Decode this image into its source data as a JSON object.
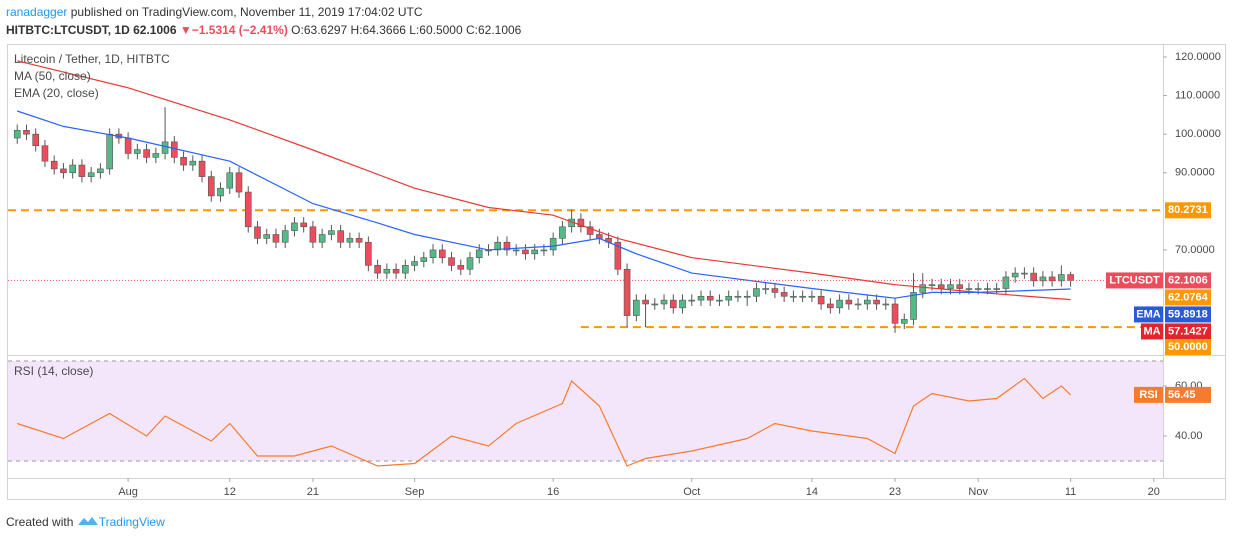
{
  "header": {
    "author": "ranadagger",
    "published": "published on TradingView.com, November 11, 2019 17:04:02 UTC",
    "symbol": "HITBTC:LTCUSDT, 1D",
    "last": "62.1006",
    "arrow": "▼",
    "change": "−1.5314 (−2.41%)",
    "ohlc": "O:63.6297 H:64.3666 L:60.5000 C:62.1006"
  },
  "footer": {
    "created": "Created with",
    "brand": "TradingView"
  },
  "chart_data": [
    {
      "type": "candlestick",
      "title": "Litecoin / Tether, 1D, HITBTC",
      "up_color": "#53b987",
      "down_color": "#eb4d5c",
      "x": [
        "07-20",
        "07-21",
        "07-22",
        "07-23",
        "07-24",
        "07-25",
        "07-26",
        "07-27",
        "07-28",
        "07-29",
        "07-30",
        "07-31",
        "08-01",
        "08-02",
        "08-03",
        "08-04",
        "08-05",
        "08-06",
        "08-07",
        "08-08",
        "08-09",
        "08-10",
        "08-11",
        "08-12",
        "08-13",
        "08-14",
        "08-15",
        "08-16",
        "08-17",
        "08-18",
        "08-19",
        "08-20",
        "08-21",
        "08-22",
        "08-23",
        "08-24",
        "08-25",
        "08-26",
        "08-27",
        "08-28",
        "08-29",
        "08-30",
        "08-31",
        "09-01",
        "09-02",
        "09-03",
        "09-04",
        "09-05",
        "09-06",
        "09-07",
        "09-08",
        "09-09",
        "09-10",
        "09-11",
        "09-12",
        "09-13",
        "09-14",
        "09-15",
        "09-16",
        "09-17",
        "09-18",
        "09-19",
        "09-20",
        "09-21",
        "09-22",
        "09-23",
        "09-24",
        "09-25",
        "09-26",
        "09-27",
        "09-28",
        "09-29",
        "09-30",
        "10-01",
        "10-02",
        "10-03",
        "10-04",
        "10-05",
        "10-06",
        "10-07",
        "10-08",
        "10-09",
        "10-10",
        "10-11",
        "10-12",
        "10-13",
        "10-14",
        "10-15",
        "10-16",
        "10-17",
        "10-18",
        "10-19",
        "10-20",
        "10-21",
        "10-22",
        "10-23",
        "10-24",
        "10-25",
        "10-26",
        "10-27",
        "10-28",
        "10-29",
        "10-30",
        "10-31",
        "11-01",
        "11-02",
        "11-03",
        "11-04",
        "11-05",
        "11-06",
        "11-07",
        "11-08",
        "11-09",
        "11-10",
        "11-11"
      ],
      "open": [
        99,
        101,
        100,
        97,
        93,
        91,
        90,
        92,
        89,
        90,
        91,
        100,
        99,
        95,
        96,
        94,
        95,
        98,
        94,
        92,
        93,
        89,
        84,
        86,
        90,
        85,
        76,
        73,
        74,
        72,
        75,
        77,
        76,
        72,
        74,
        75,
        72,
        73,
        72,
        66,
        64,
        65,
        64,
        66,
        67,
        68,
        70,
        68,
        66,
        65,
        68,
        70,
        70,
        72,
        70,
        70,
        69,
        70,
        70,
        73,
        76,
        78,
        76,
        74,
        73,
        72,
        65,
        53,
        57,
        56,
        56,
        57,
        55,
        57,
        57,
        58,
        57,
        57,
        58,
        58,
        58,
        60,
        60,
        59,
        58,
        58,
        58,
        58,
        56,
        55,
        57,
        56,
        56,
        57,
        56,
        56,
        51,
        52,
        59,
        61,
        61,
        60,
        61,
        60,
        60,
        60,
        60,
        60,
        63,
        64,
        64,
        62,
        63,
        62,
        63.6297
      ],
      "high": [
        102.5,
        102.5,
        101.5,
        98.5,
        94.5,
        92.5,
        93.5,
        93.5,
        91.5,
        92.5,
        101.5,
        101.5,
        100.5,
        97.5,
        97.5,
        96.5,
        107,
        99.5,
        95.5,
        94.5,
        94.5,
        90.5,
        87.5,
        91.5,
        91.5,
        86.5,
        77.5,
        75.5,
        75.5,
        76.5,
        78.5,
        78.5,
        77.5,
        75.5,
        76.5,
        76.5,
        74.5,
        74.5,
        73.5,
        67.5,
        66.5,
        66.5,
        67.5,
        68.5,
        69.5,
        71.5,
        71.5,
        69.5,
        67.5,
        69.5,
        71.5,
        71.5,
        73.5,
        73.5,
        71.5,
        71.5,
        71.5,
        71.5,
        74.5,
        77.5,
        80.5,
        79.5,
        77.5,
        75.5,
        74.5,
        73.5,
        66.5,
        58.5,
        58.5,
        57.5,
        58.5,
        58.5,
        58.5,
        58.5,
        59.5,
        59.5,
        58.5,
        59.5,
        59.5,
        59.5,
        61.5,
        61.5,
        61.5,
        60.5,
        59.5,
        59.5,
        59.5,
        59.5,
        57.5,
        58.5,
        58.5,
        57.5,
        58.5,
        58.5,
        57.5,
        57.5,
        53.5,
        64,
        64,
        62.5,
        62.5,
        62.5,
        62.5,
        61.5,
        61.5,
        61.5,
        61.5,
        64.5,
        65.5,
        65.5,
        65.5,
        64.5,
        64.5,
        66,
        64.3666
      ],
      "low": [
        97.5,
        98.5,
        95.5,
        91.5,
        89.5,
        88.5,
        88.5,
        87.5,
        87.5,
        88.5,
        89.5,
        97.5,
        93.5,
        93.5,
        92.5,
        92.5,
        93.5,
        92.5,
        90.5,
        90.5,
        87.5,
        82.5,
        82.5,
        84.5,
        83.5,
        74.5,
        71.5,
        71.5,
        70.5,
        70.5,
        73.5,
        74.5,
        70.5,
        70.5,
        72.5,
        70.5,
        70.5,
        70.5,
        64.5,
        62.5,
        62.5,
        62.5,
        62.5,
        64.5,
        65.5,
        66.5,
        66.5,
        64.5,
        63.5,
        63.5,
        66.5,
        68.5,
        68.5,
        68.5,
        68.5,
        67.5,
        67.5,
        68.5,
        68.5,
        71.5,
        74.5,
        74.5,
        72.5,
        71.5,
        70.5,
        63.5,
        50,
        51.5,
        50,
        54.5,
        54.5,
        53.5,
        53.5,
        55.5,
        55.5,
        55.5,
        55.5,
        55.5,
        56.5,
        55.5,
        56.5,
        58.5,
        57.5,
        56.5,
        56.5,
        56.5,
        56.5,
        54.5,
        53.5,
        53.5,
        54.5,
        54.5,
        54.5,
        54.5,
        54.5,
        48.5,
        49.5,
        50.5,
        57.5,
        59.5,
        58.5,
        58.5,
        58.5,
        58.5,
        58.5,
        58.5,
        58.5,
        58.5,
        61.5,
        62.5,
        60.5,
        60.5,
        60.5,
        60.5,
        60.5
      ],
      "close": [
        101,
        100,
        97,
        93,
        91,
        90,
        92,
        89,
        90,
        91,
        100,
        99,
        95,
        96,
        94,
        95,
        98,
        94,
        92,
        93,
        89,
        84,
        86,
        90,
        85,
        76,
        73,
        74,
        72,
        75,
        77,
        76,
        72,
        74,
        75,
        72,
        73,
        72,
        66,
        64,
        65,
        64,
        66,
        67,
        68,
        70,
        68,
        66,
        65,
        68,
        70,
        70,
        72,
        70,
        70,
        69,
        70,
        70,
        73,
        76,
        78,
        76,
        74,
        73,
        72,
        65,
        53,
        57,
        56,
        56,
        57,
        55,
        57,
        57,
        58,
        57,
        57,
        58,
        58,
        58,
        60,
        60,
        59,
        58,
        58,
        58,
        58,
        56,
        55,
        57,
        56,
        56,
        57,
        56,
        56,
        51,
        52,
        59,
        61,
        61,
        60,
        61,
        60,
        60,
        60,
        60,
        60,
        63,
        64,
        64,
        62,
        63,
        62,
        63.6297,
        62.1006
      ],
      "series": [
        {
          "name": "MA (50, close)",
          "color": "#e53935",
          "x": [
            "07-20",
            "08-01",
            "08-12",
            "08-21",
            "09-01",
            "09-09",
            "09-16",
            "09-23",
            "10-01",
            "10-14",
            "10-23",
            "11-01",
            "11-11"
          ],
          "values": [
            119,
            112,
            103.7,
            95.9,
            86,
            81,
            79,
            73,
            68,
            64,
            61,
            59,
            57.1427
          ]
        },
        {
          "name": "EMA (20, close)",
          "color": "#2962ff",
          "x": [
            "07-20",
            "07-25",
            "08-01",
            "08-12",
            "08-21",
            "08-28",
            "09-01",
            "09-09",
            "09-16",
            "09-21",
            "09-25",
            "10-01",
            "10-14",
            "10-23",
            "10-27",
            "11-01",
            "11-11"
          ],
          "values": [
            106,
            102,
            99,
            93,
            82,
            77,
            74,
            70,
            71,
            73,
            69,
            64,
            60,
            57.5,
            59,
            59,
            59.8918
          ]
        }
      ],
      "hlines": [
        {
          "value": 80.2731,
          "color": "#ff9800"
        },
        {
          "value": 50,
          "label": "50.0000",
          "color": "#ff9800",
          "from": "09-19"
        }
      ],
      "markers": [
        {
          "name": "LTCUSDT",
          "value": 62.1006,
          "color": "#eb4d5c",
          "dotted": true
        },
        {
          "value": 62.0764,
          "color": "#ff9800"
        },
        {
          "name": "EMA",
          "value": 59.8918,
          "color": "#2a5ad6"
        },
        {
          "name": "MA",
          "value": 57.1427,
          "color": "#e3232d"
        }
      ],
      "xlim": [
        "07-19",
        "11-21"
      ],
      "xticks": [
        {
          "value": "08-01",
          "label": "Aug"
        },
        {
          "value": "08-12",
          "label": "12"
        },
        {
          "value": "08-21",
          "label": "21"
        },
        {
          "value": "09-01",
          "label": "Sep"
        },
        {
          "value": "09-16",
          "label": "16"
        },
        {
          "value": "10-01",
          "label": "Oct"
        },
        {
          "value": "10-14",
          "label": "14"
        },
        {
          "value": "10-23",
          "label": "23"
        },
        {
          "value": "11-01",
          "label": "Nov"
        },
        {
          "value": "11-11",
          "label": "11"
        },
        {
          "value": "11-20",
          "label": "20"
        }
      ],
      "ylim": [
        43.3,
        123.1
      ],
      "yticks": [
        {
          "value": 70,
          "label": "70.0000"
        },
        {
          "value": 90,
          "label": "90.0000"
        },
        {
          "value": 100,
          "label": "100.0000"
        },
        {
          "value": 110,
          "label": "110.0000"
        },
        {
          "value": 120,
          "label": "120.0000"
        }
      ]
    },
    {
      "type": "line",
      "title": "RSI (14, close)",
      "band": [
        30,
        70
      ],
      "band_color": "#f3e6fb",
      "series": [
        {
          "color": "#f57c2f",
          "x": [
            "07-20",
            "07-25",
            "07-30",
            "08-03",
            "08-05",
            "08-10",
            "08-12",
            "08-15",
            "08-19",
            "08-23",
            "08-28",
            "09-01",
            "09-05",
            "09-09",
            "09-12",
            "09-17",
            "09-18",
            "09-21",
            "09-24",
            "09-26",
            "10-01",
            "10-07",
            "10-10",
            "10-14",
            "10-20",
            "10-23",
            "10-25",
            "10-27",
            "10-31",
            "11-03",
            "11-06",
            "11-08",
            "11-10",
            "11-11"
          ],
          "values": [
            45,
            39,
            49,
            40,
            48,
            38,
            45,
            32,
            32,
            36,
            28,
            29,
            40,
            36,
            45,
            53,
            62,
            52,
            28,
            31,
            34,
            39,
            45,
            42,
            39,
            33,
            52,
            57,
            54,
            55,
            63,
            55,
            60,
            56.45
          ]
        }
      ],
      "markers": [
        {
          "name": "RSI",
          "value": 56.45,
          "color": "#f57c2f"
        }
      ],
      "xlim": [
        "07-19",
        "11-21"
      ],
      "ylim": [
        23.2,
        71.6
      ],
      "yticks": [
        {
          "value": 40,
          "label": "40.00"
        },
        {
          "value": 60,
          "label": "60.00"
        }
      ]
    }
  ]
}
